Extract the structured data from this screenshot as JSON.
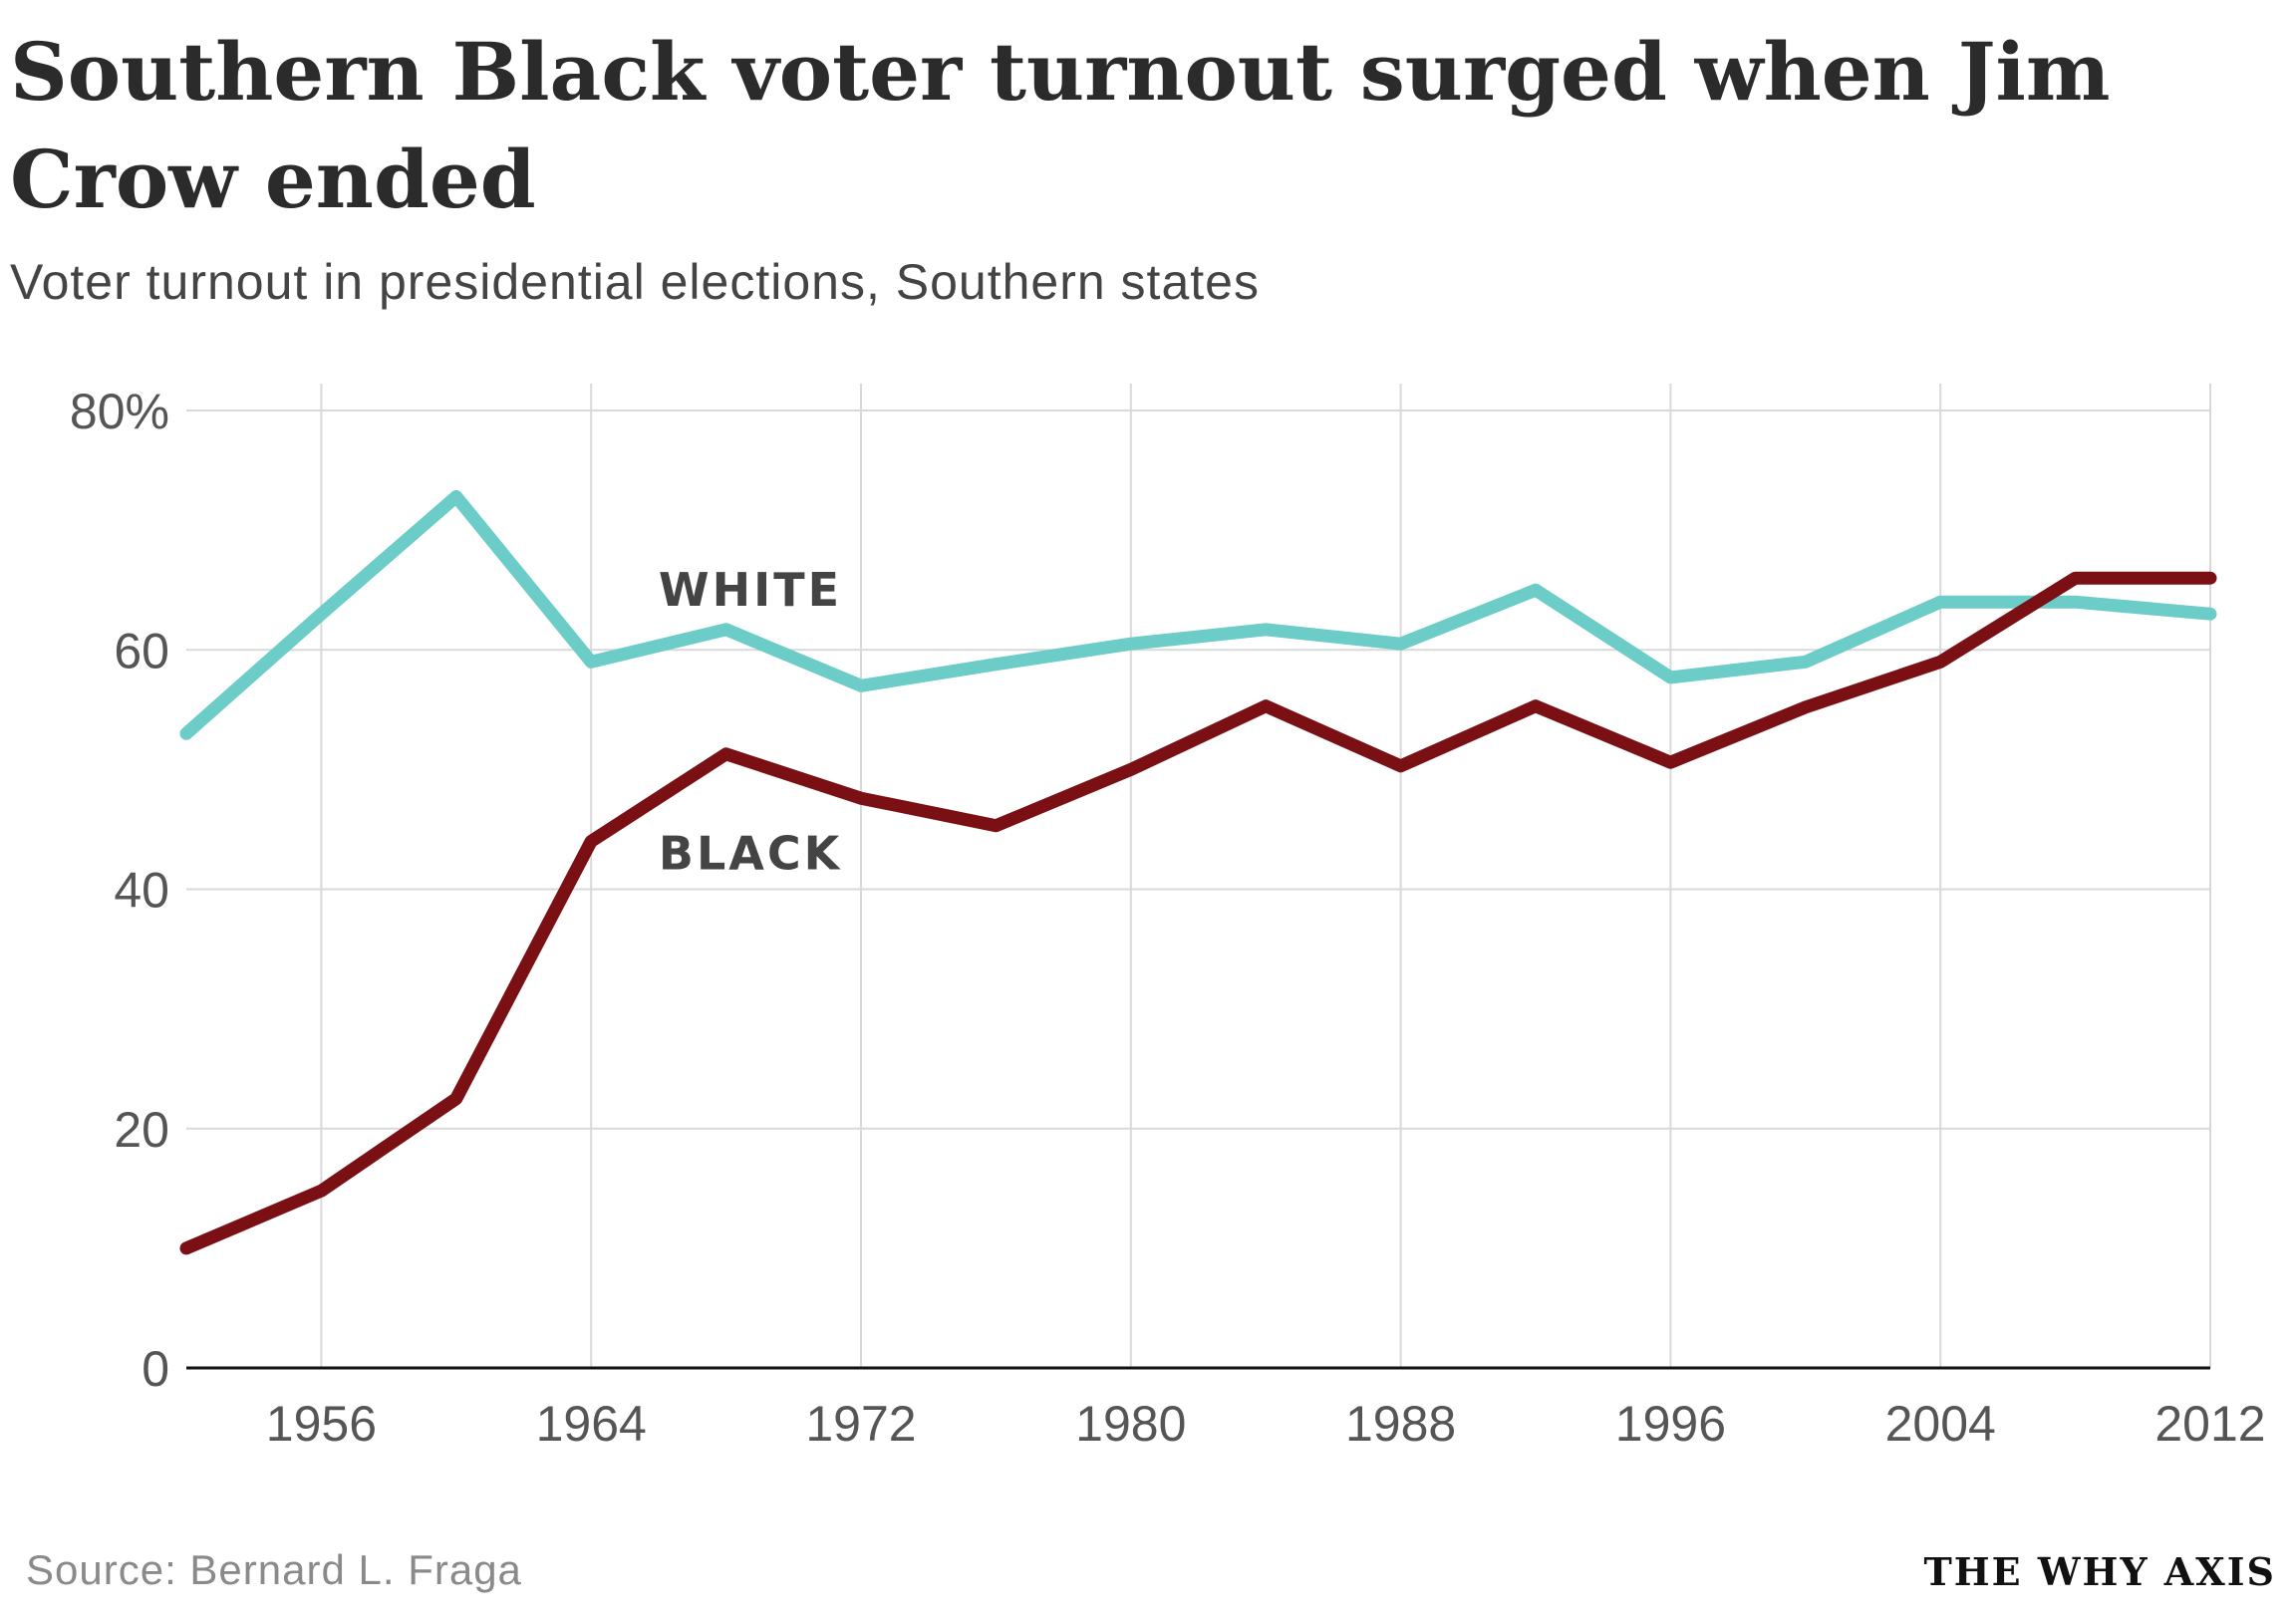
{
  "title": "Southern Black voter turnout surged when Jim Crow ended",
  "subtitle": "Voter turnout in presidential elections, Southern states",
  "source": "Source: Bernard L. Fraga",
  "brand": "THE WHY AXIS",
  "chart_data": {
    "type": "line",
    "title": "Southern Black voter turnout surged when Jim Crow ended",
    "subtitle": "Voter turnout in presidential elections, Southern states",
    "xlabel": "",
    "ylabel": "",
    "xlim": [
      1952,
      2012
    ],
    "ylim": [
      0,
      80
    ],
    "grid": true,
    "x": [
      1952,
      1956,
      1960,
      1964,
      1968,
      1972,
      1976,
      1980,
      1984,
      1988,
      1992,
      1996,
      2000,
      2004,
      2008,
      2012
    ],
    "series": [
      {
        "name": "WHITE",
        "color": "#6cccc8",
        "values": [
          53,
          63,
          72.8,
          59,
          61.7,
          57,
          58.8,
          60.5,
          61.7,
          60.5,
          65,
          57.7,
          59,
          64,
          64,
          63
        ]
      },
      {
        "name": "BLACK",
        "color": "#7a0f14",
        "values": [
          10,
          14.8,
          22.5,
          44,
          51.3,
          47.6,
          45.3,
          50,
          55.3,
          50.3,
          55.3,
          50.6,
          55.2,
          59,
          66,
          66
        ]
      }
    ],
    "x_ticks": [
      {
        "value": 1956,
        "label": "1956"
      },
      {
        "value": 1964,
        "label": "1964"
      },
      {
        "value": 1972,
        "label": "1972"
      },
      {
        "value": 1980,
        "label": "1980"
      },
      {
        "value": 1988,
        "label": "1988"
      },
      {
        "value": 1996,
        "label": "1996"
      },
      {
        "value": 2004,
        "label": "2004"
      },
      {
        "value": 2012,
        "label": "2012"
      }
    ],
    "y_ticks": [
      {
        "value": 0,
        "label": "0"
      },
      {
        "value": 20,
        "label": "20"
      },
      {
        "value": 40,
        "label": "40"
      },
      {
        "value": 60,
        "label": "60"
      },
      {
        "value": 80,
        "label": "80%"
      }
    ],
    "annotations": [
      {
        "text": "WHITE",
        "x": 1966,
        "y": 65,
        "series": "WHITE"
      },
      {
        "text": "BLACK",
        "x": 1966,
        "y": 43,
        "series": "BLACK"
      }
    ]
  }
}
